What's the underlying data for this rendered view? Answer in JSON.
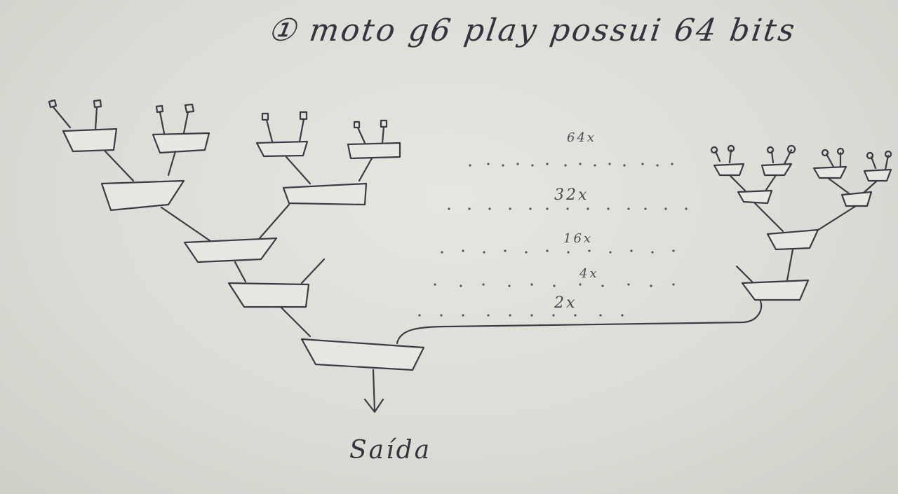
{
  "title": "① moto g6 play possui 64 bits",
  "output_label": "Saída",
  "level_counts": [
    "64x",
    "32x",
    "16x",
    "4x",
    "2x"
  ]
}
